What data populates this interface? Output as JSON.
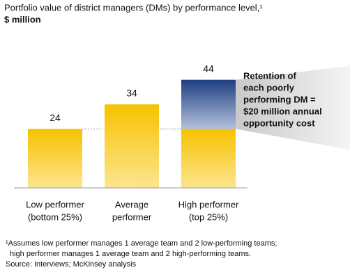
{
  "chart_data": {
    "type": "bar",
    "title": "Portfolio value of district managers (DMs) by performance level,¹",
    "subtitle": "$ million",
    "categories": [
      [
        "Low performer",
        "(bottom 25%)"
      ],
      [
        "Average",
        "performer"
      ],
      [
        "High performer",
        "(top 25%)"
      ]
    ],
    "values": [
      24,
      34,
      44
    ],
    "color": "#f6c200",
    "highlight_color": "#1f3f82",
    "annotation": [
      "Retention of",
      "each poorly",
      "performing DM =",
      "$20 million annual",
      "opportunity cost"
    ],
    "footnotes": [
      "¹Assumes low performer manages 1 average team and 2 low-performing teams;",
      "high performer manages 1 average team and 2 high-performing teams."
    ],
    "source": "Source: Interviews; McKinsey analysis"
  }
}
